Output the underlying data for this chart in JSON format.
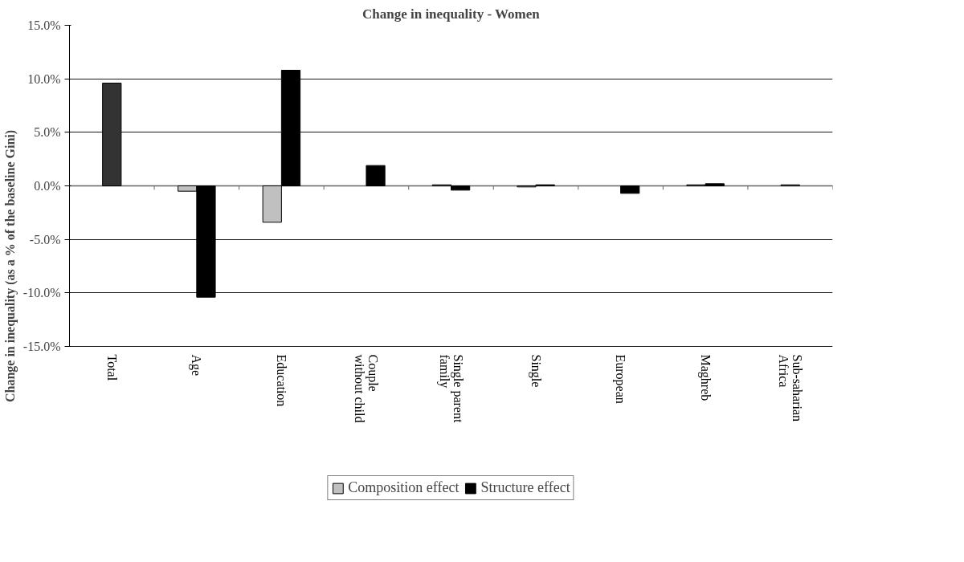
{
  "chart_data": {
    "type": "bar",
    "title": "Change in inequality - Women",
    "ylabel": "Change in inequality (as a % of the baseline Gini)",
    "categories": [
      "Total",
      "Age",
      "Education",
      "Couple without child",
      "Single parent family",
      "Single",
      "European",
      "Maghreb",
      "Sub-saharian Africa"
    ],
    "series": [
      {
        "color": "#333333",
        "values": [
          9.6,
          null,
          null,
          null,
          null,
          null,
          null,
          null,
          null
        ]
      },
      {
        "name": "Composition effect",
        "color": "#c0c0c0",
        "values": [
          null,
          -0.5,
          -3.4,
          null,
          0.1,
          -0.1,
          null,
          0.1,
          0.1
        ]
      },
      {
        "name": "Structure effect",
        "color": "#000000",
        "values": [
          null,
          -10.4,
          10.8,
          1.9,
          -0.4,
          0.1,
          -0.7,
          0.2,
          null
        ]
      }
    ],
    "ylim": [
      -15,
      15
    ],
    "yticks": [
      {
        "value": -15,
        "label": "-15.0%"
      },
      {
        "value": -10,
        "label": "-10.0%"
      },
      {
        "value": -5,
        "label": "-5.0%"
      },
      {
        "value": 0,
        "label": "0.0%"
      },
      {
        "value": 5,
        "label": "5.0%"
      },
      {
        "value": 10,
        "label": "10.0%"
      },
      {
        "value": 15,
        "label": "15.0%"
      }
    ],
    "grid": "y",
    "legend": "bottom"
  }
}
